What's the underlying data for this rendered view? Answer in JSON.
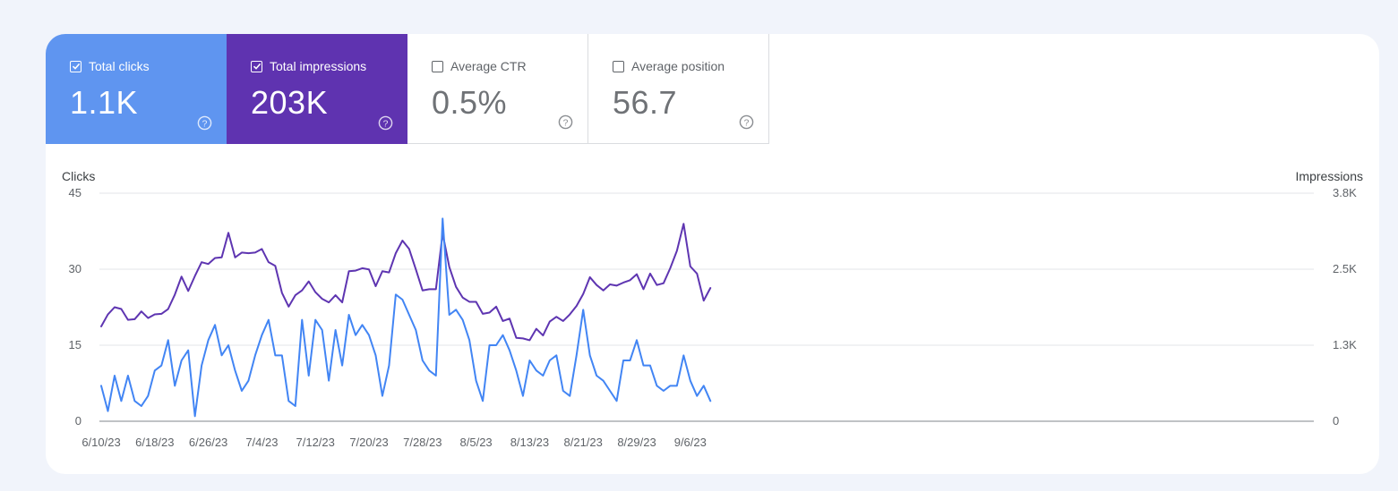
{
  "metrics": {
    "clicks": {
      "label": "Total clicks",
      "value": "1.1K",
      "checked": true
    },
    "impressions": {
      "label": "Total impressions",
      "value": "203K",
      "checked": true
    },
    "ctr": {
      "label": "Average CTR",
      "value": "0.5%",
      "checked": false
    },
    "position": {
      "label": "Average position",
      "value": "56.7",
      "checked": false
    }
  },
  "colors": {
    "clicks": "#4285f4",
    "impressions": "#5e35b1",
    "clicks_tile": "#5f95f0",
    "impressions_tile": "#5f33b0"
  },
  "icons": {
    "checkbox_checked": "check-icon",
    "help": "help-circle-icon"
  },
  "chart_data": {
    "type": "line",
    "left_axis": {
      "title": "Clicks",
      "ticks": [
        0,
        15,
        30,
        45
      ],
      "tick_labels": [
        "0",
        "15",
        "30",
        "45"
      ],
      "range": [
        0,
        45
      ]
    },
    "right_axis": {
      "title": "Impressions",
      "ticks": [
        0,
        1266.7,
        2533.3,
        3800
      ],
      "tick_labels": [
        "0",
        "1.3K",
        "2.5K",
        "3.8K"
      ],
      "range": [
        0,
        3800
      ]
    },
    "x_tick_labels": [
      "6/10/23",
      "6/18/23",
      "6/26/23",
      "7/4/23",
      "7/12/23",
      "7/20/23",
      "7/28/23",
      "8/5/23",
      "8/13/23",
      "8/21/23",
      "8/29/23",
      "9/6/23"
    ],
    "x_tick_indices": [
      0,
      8,
      16,
      24,
      32,
      40,
      48,
      56,
      64,
      72,
      80,
      88
    ],
    "x_start": "6/10/23",
    "grid": true,
    "series": [
      {
        "name": "Clicks",
        "axis": "left",
        "color": "#4285f4",
        "values": [
          7,
          2,
          9,
          4,
          9,
          4,
          3,
          5,
          10,
          11,
          16,
          7,
          12,
          14,
          1,
          11,
          16,
          19,
          13,
          15,
          10,
          6,
          8,
          13,
          17,
          20,
          13,
          13,
          4,
          3,
          20,
          9,
          20,
          18,
          8,
          18,
          11,
          21,
          17,
          19,
          17,
          13,
          5,
          11,
          25,
          24,
          21,
          18,
          12,
          10,
          9,
          40,
          21,
          22,
          20,
          16,
          8,
          4,
          15,
          15,
          17,
          14,
          10,
          5,
          12,
          10,
          9,
          12,
          13,
          6,
          5,
          13,
          22,
          13,
          9,
          8,
          6,
          4,
          12,
          12,
          16,
          11,
          11,
          7,
          6,
          7,
          7,
          13,
          8,
          5,
          7,
          4
        ]
      },
      {
        "name": "Impressions",
        "axis": "right",
        "color": "#5e35b1",
        "values": [
          1580,
          1780,
          1900,
          1870,
          1690,
          1700,
          1830,
          1720,
          1780,
          1790,
          1870,
          2110,
          2410,
          2170,
          2420,
          2650,
          2620,
          2720,
          2730,
          3140,
          2730,
          2810,
          2800,
          2810,
          2870,
          2650,
          2590,
          2140,
          1910,
          2100,
          2180,
          2330,
          2150,
          2040,
          1980,
          2100,
          1980,
          2500,
          2510,
          2550,
          2530,
          2250,
          2500,
          2480,
          2800,
          3010,
          2870,
          2530,
          2180,
          2200,
          2200,
          3130,
          2570,
          2240,
          2060,
          1990,
          1990,
          1790,
          1810,
          1910,
          1670,
          1710,
          1390,
          1380,
          1350,
          1540,
          1430,
          1660,
          1740,
          1670,
          1780,
          1920,
          2120,
          2400,
          2270,
          2180,
          2280,
          2260,
          2310,
          2350,
          2450,
          2200,
          2460,
          2270,
          2300,
          2550,
          2840,
          3290,
          2580,
          2460,
          2010,
          2220
        ]
      }
    ]
  }
}
